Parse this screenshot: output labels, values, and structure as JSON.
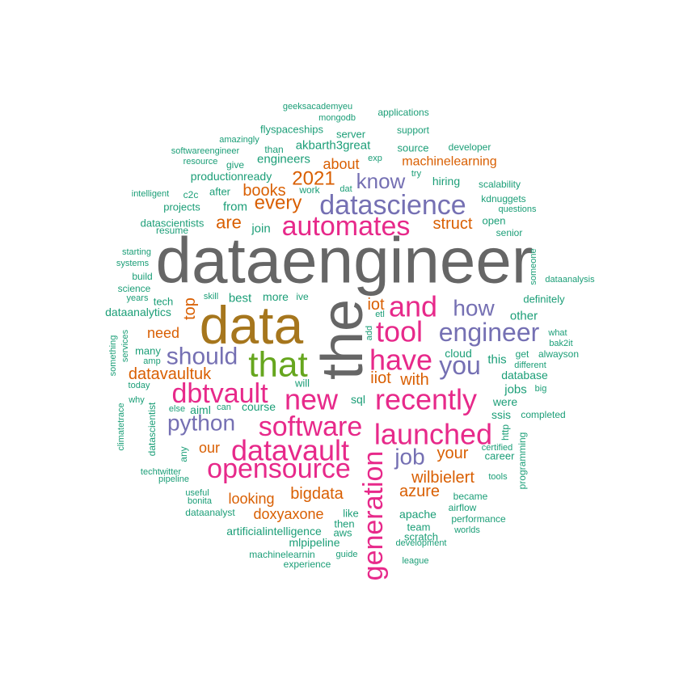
{
  "palette": {
    "gray": "#666666",
    "gold": "#A6761D",
    "green": "#66A61E",
    "pink": "#E7298A",
    "purple": "#7570B3",
    "orange": "#D95F02",
    "teal": "#1B9E77"
  },
  "words": [
    {
      "text": "dataengineer",
      "color": "gray"
    },
    {
      "text": "data",
      "color": "gold"
    },
    {
      "text": "the",
      "color": "gray"
    },
    {
      "text": "that",
      "color": "green"
    },
    {
      "text": "automates",
      "color": "pink"
    },
    {
      "text": "datascience",
      "color": "purple"
    },
    {
      "text": "have",
      "color": "pink"
    },
    {
      "text": "new",
      "color": "pink"
    },
    {
      "text": "dbtvault",
      "color": "pink"
    },
    {
      "text": "tool",
      "color": "pink"
    },
    {
      "text": "and",
      "color": "pink"
    },
    {
      "text": "recently",
      "color": "pink"
    },
    {
      "text": "software",
      "color": "pink"
    },
    {
      "text": "datavault",
      "color": "pink"
    },
    {
      "text": "opensource",
      "color": "pink"
    },
    {
      "text": "launched",
      "color": "pink"
    },
    {
      "text": "generation",
      "color": "pink"
    },
    {
      "text": "engineer",
      "color": "purple"
    },
    {
      "text": "should",
      "color": "purple"
    },
    {
      "text": "you",
      "color": "purple"
    },
    {
      "text": "python",
      "color": "purple"
    },
    {
      "text": "know",
      "color": "purple"
    },
    {
      "text": "how",
      "color": "purple"
    },
    {
      "text": "job",
      "color": "purple"
    },
    {
      "text": "every",
      "color": "orange"
    },
    {
      "text": "2021",
      "color": "orange"
    },
    {
      "text": "books",
      "color": "orange"
    },
    {
      "text": "are",
      "color": "orange"
    },
    {
      "text": "struct",
      "color": "orange"
    },
    {
      "text": "datavaultuk",
      "color": "orange"
    },
    {
      "text": "top",
      "color": "orange"
    },
    {
      "text": "need",
      "color": "orange"
    },
    {
      "text": "iot",
      "color": "orange"
    },
    {
      "text": "iiot",
      "color": "orange"
    },
    {
      "text": "with",
      "color": "orange"
    },
    {
      "text": "your",
      "color": "orange"
    },
    {
      "text": "wilbielert",
      "color": "orange"
    },
    {
      "text": "azure",
      "color": "orange"
    },
    {
      "text": "bigdata",
      "color": "orange"
    },
    {
      "text": "looking",
      "color": "orange"
    },
    {
      "text": "doxyaxone",
      "color": "orange"
    },
    {
      "text": "our",
      "color": "orange"
    },
    {
      "text": "about",
      "color": "orange"
    },
    {
      "text": "machinelearning",
      "color": "orange"
    },
    {
      "text": "geeksacademyeu",
      "color": "teal"
    },
    {
      "text": "mongodb",
      "color": "teal"
    },
    {
      "text": "applications",
      "color": "teal"
    },
    {
      "text": "flyspaceships",
      "color": "teal"
    },
    {
      "text": "server",
      "color": "teal"
    },
    {
      "text": "support",
      "color": "teal"
    },
    {
      "text": "amazingly",
      "color": "teal"
    },
    {
      "text": "akbarth3great",
      "color": "teal"
    },
    {
      "text": "than",
      "color": "teal"
    },
    {
      "text": "softwareengineer",
      "color": "teal"
    },
    {
      "text": "source",
      "color": "teal"
    },
    {
      "text": "developer",
      "color": "teal"
    },
    {
      "text": "engineers",
      "color": "teal"
    },
    {
      "text": "resource",
      "color": "teal"
    },
    {
      "text": "give",
      "color": "teal"
    },
    {
      "text": "exp",
      "color": "teal"
    },
    {
      "text": "productionready",
      "color": "teal"
    },
    {
      "text": "try",
      "color": "teal"
    },
    {
      "text": "hiring",
      "color": "teal"
    },
    {
      "text": "scalability",
      "color": "teal"
    },
    {
      "text": "work",
      "color": "teal"
    },
    {
      "text": "dat",
      "color": "teal"
    },
    {
      "text": "intelligent",
      "color": "teal"
    },
    {
      "text": "c2c",
      "color": "teal"
    },
    {
      "text": "after",
      "color": "teal"
    },
    {
      "text": "kdnuggets",
      "color": "teal"
    },
    {
      "text": "projects",
      "color": "teal"
    },
    {
      "text": "from",
      "color": "teal"
    },
    {
      "text": "questions",
      "color": "teal"
    },
    {
      "text": "datascientists",
      "color": "teal"
    },
    {
      "text": "open",
      "color": "teal"
    },
    {
      "text": "resume",
      "color": "teal"
    },
    {
      "text": "join",
      "color": "teal"
    },
    {
      "text": "senior",
      "color": "teal"
    },
    {
      "text": "starting",
      "color": "teal"
    },
    {
      "text": "systems",
      "color": "teal"
    },
    {
      "text": "someone",
      "color": "teal"
    },
    {
      "text": "build",
      "color": "teal"
    },
    {
      "text": "dataanalysis",
      "color": "teal"
    },
    {
      "text": "science",
      "color": "teal"
    },
    {
      "text": "skill",
      "color": "teal"
    },
    {
      "text": "best",
      "color": "teal"
    },
    {
      "text": "more",
      "color": "teal"
    },
    {
      "text": "ive",
      "color": "teal"
    },
    {
      "text": "years",
      "color": "teal"
    },
    {
      "text": "tech",
      "color": "teal"
    },
    {
      "text": "definitely",
      "color": "teal"
    },
    {
      "text": "dataanalytics",
      "color": "teal"
    },
    {
      "text": "etl",
      "color": "teal"
    },
    {
      "text": "other",
      "color": "teal"
    },
    {
      "text": "something",
      "color": "teal"
    },
    {
      "text": "services",
      "color": "teal"
    },
    {
      "text": "add",
      "color": "teal"
    },
    {
      "text": "what",
      "color": "teal"
    },
    {
      "text": "bak2it",
      "color": "teal"
    },
    {
      "text": "many",
      "color": "teal"
    },
    {
      "text": "cloud",
      "color": "teal"
    },
    {
      "text": "get",
      "color": "teal"
    },
    {
      "text": "alwayson",
      "color": "teal"
    },
    {
      "text": "amp",
      "color": "teal"
    },
    {
      "text": "this",
      "color": "teal"
    },
    {
      "text": "different",
      "color": "teal"
    },
    {
      "text": "today",
      "color": "teal"
    },
    {
      "text": "database",
      "color": "teal"
    },
    {
      "text": "will",
      "color": "teal"
    },
    {
      "text": "big",
      "color": "teal"
    },
    {
      "text": "jobs",
      "color": "teal"
    },
    {
      "text": "why",
      "color": "teal"
    },
    {
      "text": "sql",
      "color": "teal"
    },
    {
      "text": "were",
      "color": "teal"
    },
    {
      "text": "course",
      "color": "teal"
    },
    {
      "text": "can",
      "color": "teal"
    },
    {
      "text": "else",
      "color": "teal"
    },
    {
      "text": "aiml",
      "color": "teal"
    },
    {
      "text": "ssis",
      "color": "teal"
    },
    {
      "text": "completed",
      "color": "teal"
    },
    {
      "text": "climatetrace",
      "color": "teal"
    },
    {
      "text": "datascientist",
      "color": "teal"
    },
    {
      "text": "http",
      "color": "teal"
    },
    {
      "text": "certified",
      "color": "teal"
    },
    {
      "text": "programming",
      "color": "teal"
    },
    {
      "text": "any",
      "color": "teal"
    },
    {
      "text": "career",
      "color": "teal"
    },
    {
      "text": "techtwitter",
      "color": "teal"
    },
    {
      "text": "pipeline",
      "color": "teal"
    },
    {
      "text": "tools",
      "color": "teal"
    },
    {
      "text": "useful",
      "color": "teal"
    },
    {
      "text": "bonita",
      "color": "teal"
    },
    {
      "text": "became",
      "color": "teal"
    },
    {
      "text": "airflow",
      "color": "teal"
    },
    {
      "text": "dataanalyst",
      "color": "teal"
    },
    {
      "text": "like",
      "color": "teal"
    },
    {
      "text": "apache",
      "color": "teal"
    },
    {
      "text": "performance",
      "color": "teal"
    },
    {
      "text": "artificialintelligence",
      "color": "teal"
    },
    {
      "text": "then",
      "color": "teal"
    },
    {
      "text": "team",
      "color": "teal"
    },
    {
      "text": "worlds",
      "color": "teal"
    },
    {
      "text": "mlpipeline",
      "color": "teal"
    },
    {
      "text": "aws",
      "color": "teal"
    },
    {
      "text": "scratch",
      "color": "teal"
    },
    {
      "text": "development",
      "color": "teal"
    },
    {
      "text": "machinelearnin",
      "color": "teal"
    },
    {
      "text": "guide",
      "color": "teal"
    },
    {
      "text": "experience",
      "color": "teal"
    },
    {
      "text": "league",
      "color": "teal"
    }
  ]
}
